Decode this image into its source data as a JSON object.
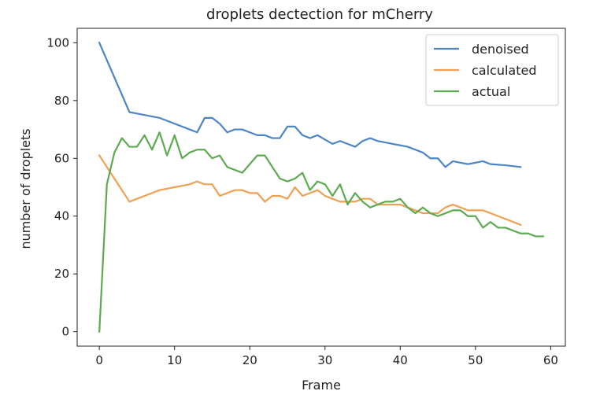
{
  "chart_data": {
    "type": "line",
    "title": "droplets dectection for mCherry",
    "xlabel": "Frame",
    "ylabel": "number of droplets",
    "xlim": [
      -2.95,
      61.95
    ],
    "ylim": [
      -5,
      105
    ],
    "xticks": [
      0,
      10,
      20,
      30,
      40,
      50,
      60
    ],
    "yticks": [
      0,
      20,
      40,
      60,
      80,
      100
    ],
    "grid": false,
    "legend": "top-right",
    "series": [
      {
        "name": "denoised",
        "color": "#4c86c6",
        "x": [
          0,
          1,
          2,
          3,
          4,
          5,
          6,
          7,
          8,
          9,
          10,
          11,
          12,
          13,
          14,
          15,
          16,
          17,
          18,
          19,
          20,
          21,
          22,
          23,
          24,
          25,
          26,
          27,
          28,
          29,
          30,
          31,
          32,
          33,
          34,
          35,
          36,
          37,
          38,
          39,
          40,
          41,
          42,
          43,
          44,
          45,
          46,
          47,
          48,
          49,
          50,
          51,
          52,
          53,
          54,
          55,
          56
        ],
        "values": [
          100,
          94,
          88,
          82,
          76,
          75.5,
          75,
          74.5,
          74,
          73,
          72,
          71,
          70,
          69,
          74,
          74,
          72,
          69,
          70,
          70,
          69,
          68,
          68,
          67,
          67,
          71,
          71,
          68,
          67,
          68,
          66.5,
          65,
          66,
          65,
          64,
          66,
          67,
          66,
          65.5,
          65,
          64.5,
          64,
          63,
          62,
          60,
          60,
          57,
          59,
          58.5,
          58,
          58.5,
          59,
          58,
          57.8,
          57.6,
          57.3,
          57
        ]
      },
      {
        "name": "calculated",
        "color": "#f0a052",
        "x": [
          0,
          1,
          2,
          3,
          4,
          5,
          6,
          7,
          8,
          9,
          10,
          11,
          12,
          13,
          14,
          15,
          16,
          17,
          18,
          19,
          20,
          21,
          22,
          23,
          24,
          25,
          26,
          27,
          28,
          29,
          30,
          31,
          32,
          33,
          34,
          35,
          36,
          37,
          38,
          39,
          40,
          41,
          42,
          43,
          44,
          45,
          46,
          47,
          48,
          49,
          50,
          51,
          52,
          53,
          54,
          55,
          56
        ],
        "values": [
          61,
          57,
          53,
          49,
          45,
          46,
          47,
          48,
          49,
          49.5,
          50,
          50.5,
          51,
          52,
          51,
          51,
          47,
          48,
          49,
          49,
          48,
          48,
          45,
          47,
          47,
          46,
          50,
          47,
          48,
          49,
          47,
          46,
          45,
          45,
          45,
          46,
          46,
          44,
          44,
          44,
          44,
          43,
          42,
          41,
          41,
          41,
          43,
          44,
          43,
          42,
          42,
          42,
          41,
          40,
          39,
          38,
          37
        ]
      },
      {
        "name": "actual",
        "color": "#5daa50",
        "x": [
          0,
          1,
          2,
          3,
          4,
          5,
          6,
          7,
          8,
          9,
          10,
          11,
          12,
          13,
          14,
          15,
          16,
          17,
          18,
          19,
          20,
          21,
          22,
          23,
          24,
          25,
          26,
          27,
          28,
          29,
          30,
          31,
          32,
          33,
          34,
          35,
          36,
          37,
          38,
          39,
          40,
          41,
          42,
          43,
          44,
          45,
          46,
          47,
          48,
          49,
          50,
          51,
          52,
          53,
          54,
          55,
          56,
          57,
          58,
          59
        ],
        "values": [
          0,
          51,
          62,
          67,
          64,
          64,
          68,
          63,
          69,
          61,
          68,
          60,
          62,
          63,
          63,
          60,
          61,
          57,
          56,
          55,
          58,
          61,
          61,
          57,
          53,
          52,
          53,
          55,
          49,
          52,
          51,
          47,
          51,
          44,
          48,
          45,
          43,
          44,
          45,
          45,
          46,
          43,
          41,
          43,
          41,
          40,
          41,
          42,
          42,
          40,
          40,
          36,
          38,
          36,
          36,
          35,
          34,
          34,
          33,
          33
        ]
      }
    ]
  }
}
